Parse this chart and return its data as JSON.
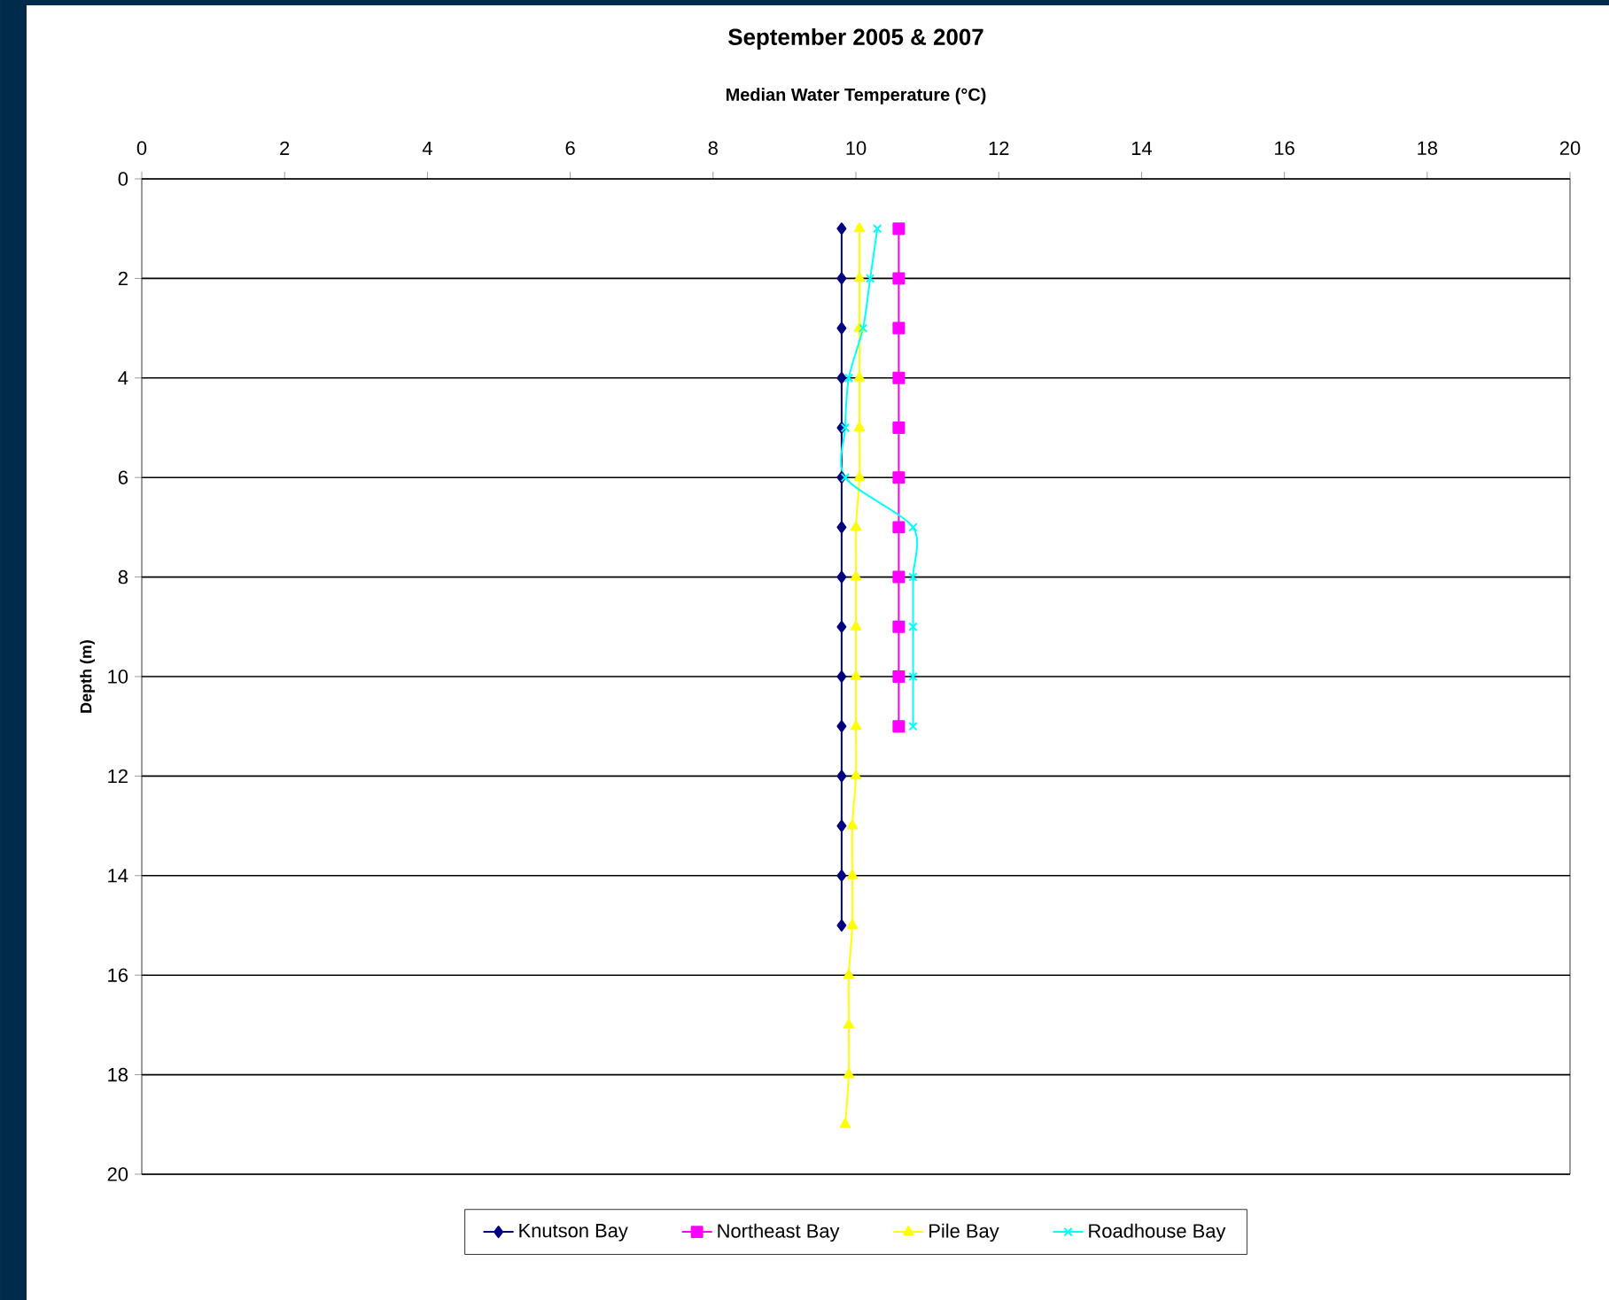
{
  "chart_data": {
    "type": "line",
    "title": "September 2005 & 2007",
    "xlabel": "Median Water Temperature (°C)",
    "ylabel": "Depth (m)",
    "xlim": [
      0,
      20
    ],
    "xticks": [
      0,
      2,
      4,
      6,
      8,
      10,
      12,
      14,
      16,
      18,
      20
    ],
    "ylim": [
      20,
      0
    ],
    "yticks": [
      0,
      2,
      4,
      6,
      8,
      10,
      12,
      14,
      16,
      18,
      20
    ],
    "grid": "y",
    "legend": "bottom",
    "series": [
      {
        "name": "Knutson Bay",
        "color": "#000080",
        "marker": "diamond",
        "x": [
          9.8,
          9.8,
          9.8,
          9.8,
          9.8,
          9.8,
          9.8,
          9.8,
          9.8,
          9.8,
          9.8,
          9.8,
          9.8,
          9.8,
          9.8
        ],
        "values": [
          1,
          2,
          3,
          4,
          5,
          6,
          7,
          8,
          9,
          10,
          11,
          12,
          13,
          14,
          15
        ]
      },
      {
        "name": "Northeast Bay",
        "color": "#ff00ff",
        "marker": "square",
        "x": [
          10.6,
          10.6,
          10.6,
          10.6,
          10.6,
          10.6,
          10.6,
          10.6,
          10.6,
          10.6,
          10.6
        ],
        "values": [
          1,
          2,
          3,
          4,
          5,
          6,
          7,
          8,
          9,
          10,
          11
        ]
      },
      {
        "name": "Pile Bay",
        "color": "#ffff00",
        "marker": "triangle",
        "x": [
          10.05,
          10.05,
          10.05,
          10.05,
          10.05,
          10.05,
          10.0,
          10.0,
          10.0,
          10.0,
          10.0,
          10.0,
          9.95,
          9.95,
          9.95,
          9.9,
          9.9,
          9.9,
          9.85
        ],
        "values": [
          1,
          2,
          3,
          4,
          5,
          6,
          7,
          8,
          9,
          10,
          11,
          12,
          13,
          14,
          15,
          16,
          17,
          18,
          19
        ]
      },
      {
        "name": "Roadhouse Bay",
        "color": "#00ffff",
        "marker": "cross",
        "x": [
          10.3,
          10.2,
          10.1,
          9.9,
          9.85,
          9.85,
          10.8,
          10.8,
          10.8,
          10.8,
          10.8
        ],
        "values": [
          1,
          2,
          3,
          4,
          5,
          6,
          7,
          8,
          9,
          10,
          11
        ]
      }
    ]
  }
}
